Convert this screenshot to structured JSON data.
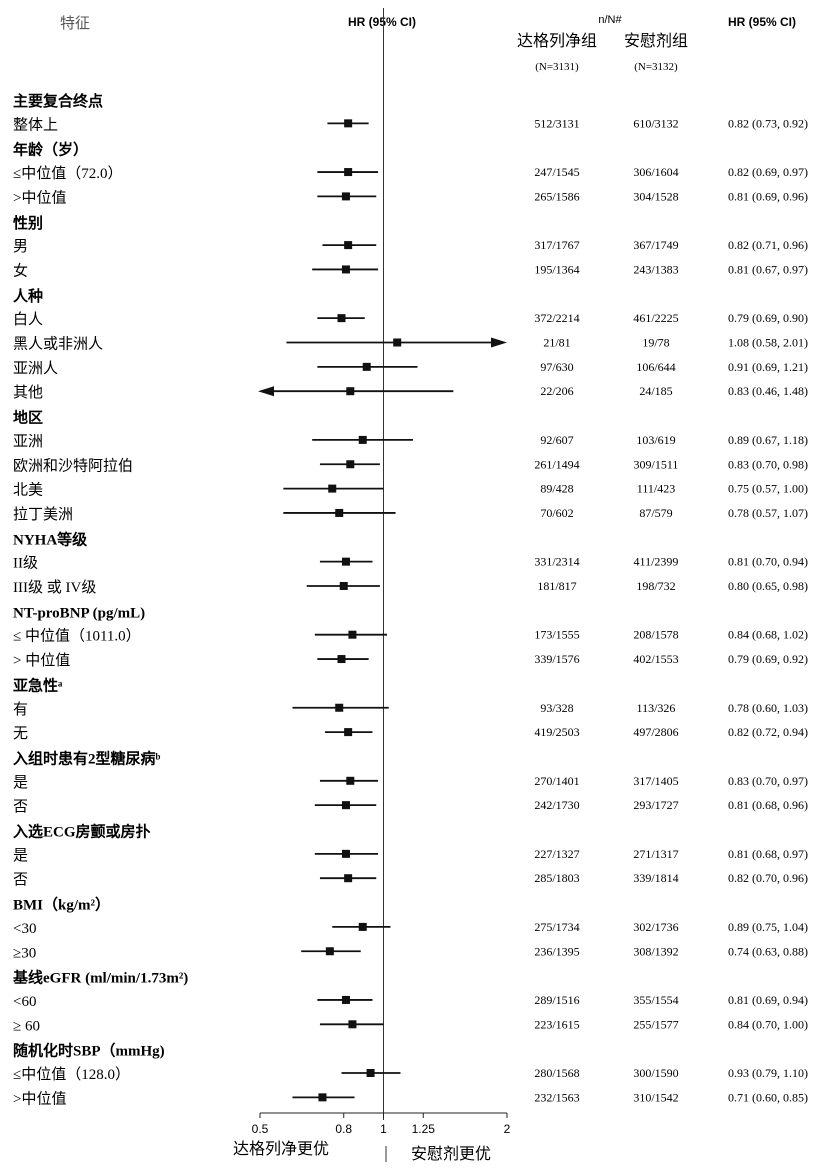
{
  "header": {
    "feature": "特征",
    "hr_ci_center": "HR (95% CI)",
    "n_over_N": "n/N#",
    "group_treat": "达格列净组",
    "group_placebo": "安慰剂组",
    "n_treat": "(N=3131)",
    "n_placebo": "(N=3132)",
    "hr_ci_right": "HR (95% CI)"
  },
  "footer": {
    "favors_treat": "达格列净更优",
    "favors_placebo": "安慰剂更优"
  },
  "chart_data": {
    "type": "forest",
    "x_scale": "log",
    "reference_line": 1,
    "x_ticks": [
      {
        "value": 0.5,
        "label": "0.5"
      },
      {
        "value": 0.8,
        "label": "0.8"
      },
      {
        "value": 1,
        "label": "1"
      },
      {
        "value": 1.25,
        "label": "1.25"
      },
      {
        "value": 2,
        "label": "2"
      }
    ],
    "rows": [
      {
        "kind": "group",
        "label": "主要复合终点"
      },
      {
        "kind": "row",
        "label": "整体上",
        "treat": "512/3131",
        "placebo": "610/3132",
        "hr_text": "0.82 (0.73, 0.92)",
        "hr": 0.82,
        "lo": 0.73,
        "hi": 0.92
      },
      {
        "kind": "group",
        "label": "年龄（岁）"
      },
      {
        "kind": "row",
        "label": "≤中位值（72.0）",
        "treat": "247/1545",
        "placebo": "306/1604",
        "hr_text": "0.82 (0.69, 0.97)",
        "hr": 0.82,
        "lo": 0.69,
        "hi": 0.97
      },
      {
        "kind": "row",
        "label": ">中位值",
        "treat": "265/1586",
        "placebo": "304/1528",
        "hr_text": "0.81 (0.69, 0.96)",
        "hr": 0.81,
        "lo": 0.69,
        "hi": 0.96
      },
      {
        "kind": "group",
        "label": "性别"
      },
      {
        "kind": "row",
        "label": "男",
        "treat": "317/1767",
        "placebo": "367/1749",
        "hr_text": "0.82 (0.71, 0.96)",
        "hr": 0.82,
        "lo": 0.71,
        "hi": 0.96
      },
      {
        "kind": "row",
        "label": "女",
        "treat": "195/1364",
        "placebo": "243/1383",
        "hr_text": "0.81 (0.67, 0.97)",
        "hr": 0.81,
        "lo": 0.67,
        "hi": 0.97
      },
      {
        "kind": "group",
        "label": "人种"
      },
      {
        "kind": "row",
        "label": "白人",
        "treat": "372/2214",
        "placebo": "461/2225",
        "hr_text": "0.79 (0.69, 0.90)",
        "hr": 0.79,
        "lo": 0.69,
        "hi": 0.9
      },
      {
        "kind": "row",
        "label": "黑人或非洲人",
        "treat": "21/81",
        "placebo": "19/78",
        "hr_text": "1.08 (0.58, 2.01)",
        "hr": 1.08,
        "lo": 0.58,
        "hi": 2.01
      },
      {
        "kind": "row",
        "label": "亚洲人",
        "treat": "97/630",
        "placebo": "106/644",
        "hr_text": "0.91 (0.69, 1.21)",
        "hr": 0.91,
        "lo": 0.69,
        "hi": 1.21
      },
      {
        "kind": "row",
        "label": "其他",
        "treat": "22/206",
        "placebo": "24/185",
        "hr_text": "0.83 (0.46, 1.48)",
        "hr": 0.83,
        "lo": 0.46,
        "hi": 1.48
      },
      {
        "kind": "group",
        "label": "地区"
      },
      {
        "kind": "row",
        "label": "亚洲",
        "treat": "92/607",
        "placebo": "103/619",
        "hr_text": "0.89 (0.67, 1.18)",
        "hr": 0.89,
        "lo": 0.67,
        "hi": 1.18
      },
      {
        "kind": "row",
        "label": "欧洲和沙特阿拉伯",
        "treat": "261/1494",
        "placebo": "309/1511",
        "hr_text": "0.83 (0.70, 0.98)",
        "hr": 0.83,
        "lo": 0.7,
        "hi": 0.98
      },
      {
        "kind": "row",
        "label": "北美",
        "treat": "89/428",
        "placebo": "111/423",
        "hr_text": "0.75 (0.57, 1.00)",
        "hr": 0.75,
        "lo": 0.57,
        "hi": 1.0
      },
      {
        "kind": "row",
        "label": "拉丁美洲",
        "treat": "70/602",
        "placebo": "87/579",
        "hr_text": "0.78 (0.57, 1.07)",
        "hr": 0.78,
        "lo": 0.57,
        "hi": 1.07
      },
      {
        "kind": "group",
        "label": "NYHA等级"
      },
      {
        "kind": "row",
        "label": "II级",
        "treat": "331/2314",
        "placebo": "411/2399",
        "hr_text": "0.81 (0.70, 0.94)",
        "hr": 0.81,
        "lo": 0.7,
        "hi": 0.94
      },
      {
        "kind": "row",
        "label": "III级 或 IV级",
        "treat": "181/817",
        "placebo": "198/732",
        "hr_text": "0.80 (0.65, 0.98)",
        "hr": 0.8,
        "lo": 0.65,
        "hi": 0.98
      },
      {
        "kind": "group",
        "label": "NT-proBNP (pg/mL)"
      },
      {
        "kind": "row",
        "label": "≤ 中位值（1011.0）",
        "treat": "173/1555",
        "placebo": "208/1578",
        "hr_text": "0.84 (0.68, 1.02)",
        "hr": 0.84,
        "lo": 0.68,
        "hi": 1.02
      },
      {
        "kind": "row",
        "label": "> 中位值",
        "treat": "339/1576",
        "placebo": "402/1553",
        "hr_text": "0.79 (0.69, 0.92)",
        "hr": 0.79,
        "lo": 0.69,
        "hi": 0.92
      },
      {
        "kind": "group",
        "label": "亚急性ᵃ"
      },
      {
        "kind": "row",
        "label": "有",
        "treat": "93/328",
        "placebo": "113/326",
        "hr_text": "0.78 (0.60, 1.03)",
        "hr": 0.78,
        "lo": 0.6,
        "hi": 1.03
      },
      {
        "kind": "row",
        "label": "无",
        "treat": "419/2503",
        "placebo": "497/2806",
        "hr_text": "0.82 (0.72, 0.94)",
        "hr": 0.82,
        "lo": 0.72,
        "hi": 0.94
      },
      {
        "kind": "group",
        "label": "入组时患有2型糖尿病ᵇ"
      },
      {
        "kind": "row",
        "label": "是",
        "treat": "270/1401",
        "placebo": "317/1405",
        "hr_text": "0.83 (0.70, 0.97)",
        "hr": 0.83,
        "lo": 0.7,
        "hi": 0.97
      },
      {
        "kind": "row",
        "label": "否",
        "treat": "242/1730",
        "placebo": "293/1727",
        "hr_text": "0.81 (0.68, 0.96)",
        "hr": 0.81,
        "lo": 0.68,
        "hi": 0.96
      },
      {
        "kind": "group",
        "label": "入选ECG房颤或房扑"
      },
      {
        "kind": "row",
        "label": "是",
        "treat": "227/1327",
        "placebo": "271/1317",
        "hr_text": "0.81 (0.68, 0.97)",
        "hr": 0.81,
        "lo": 0.68,
        "hi": 0.97
      },
      {
        "kind": "row",
        "label": "否",
        "treat": "285/1803",
        "placebo": "339/1814",
        "hr_text": "0.82 (0.70, 0.96)",
        "hr": 0.82,
        "lo": 0.7,
        "hi": 0.96
      },
      {
        "kind": "group",
        "label": "BMI（kg/m²）"
      },
      {
        "kind": "row",
        "label": "<30",
        "treat": "275/1734",
        "placebo": "302/1736",
        "hr_text": "0.89 (0.75, 1.04)",
        "hr": 0.89,
        "lo": 0.75,
        "hi": 1.04
      },
      {
        "kind": "row",
        "label": "≥30",
        "treat": "236/1395",
        "placebo": "308/1392",
        "hr_text": "0.74 (0.63, 0.88)",
        "hr": 0.74,
        "lo": 0.63,
        "hi": 0.88
      },
      {
        "kind": "group",
        "label": "基线eGFR (ml/min/1.73m²)"
      },
      {
        "kind": "row",
        "label": "<60",
        "treat": "289/1516",
        "placebo": "355/1554",
        "hr_text": "0.81 (0.69, 0.94)",
        "hr": 0.81,
        "lo": 0.69,
        "hi": 0.94
      },
      {
        "kind": "row",
        "label": "≥ 60",
        "treat": "223/1615",
        "placebo": "255/1577",
        "hr_text": "0.84 (0.70, 1.00)",
        "hr": 0.84,
        "lo": 0.7,
        "hi": 1.0
      },
      {
        "kind": "group",
        "label": "随机化时SBP（mmHg)"
      },
      {
        "kind": "row",
        "label": "≤中位值（128.0）",
        "treat": "280/1568",
        "placebo": "300/1590",
        "hr_text": "0.93 (0.79, 1.10)",
        "hr": 0.93,
        "lo": 0.79,
        "hi": 1.1
      },
      {
        "kind": "row",
        "label": ">中位值",
        "treat": "232/1563",
        "placebo": "310/1542",
        "hr_text": "0.71 (0.60, 0.85)",
        "hr": 0.71,
        "lo": 0.6,
        "hi": 0.85
      }
    ]
  }
}
